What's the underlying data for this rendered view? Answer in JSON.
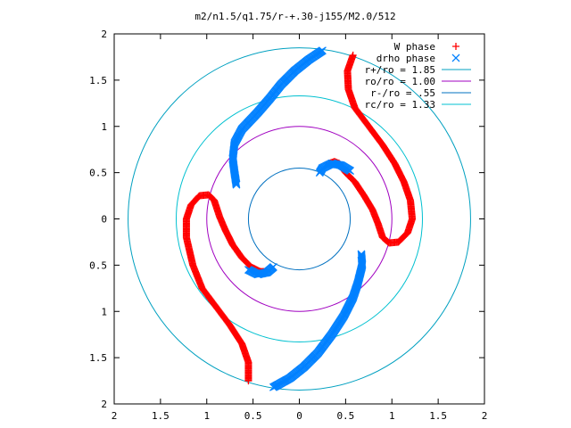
{
  "chart_data": {
    "type": "scatter",
    "title": "m2/n1.5/q1.75/r-+.30-j155/M2.0/512",
    "xlim": [
      -2,
      2
    ],
    "ylim": [
      -2,
      2
    ],
    "x_tick_values": [
      -2,
      -1.5,
      -1,
      -0.5,
      0,
      0.5,
      1,
      1.5,
      2
    ],
    "x_tick_labels": [
      "2",
      "1.5",
      "1",
      "0.5",
      "0",
      "0.5",
      "1",
      "1.5",
      "2"
    ],
    "y_tick_values": [
      2,
      1.5,
      1,
      0.5,
      0,
      -0.5,
      -1,
      -1.5,
      -2
    ],
    "y_tick_labels": [
      "2",
      "1.5",
      "1",
      "0.5",
      "0",
      "0.5",
      "1",
      "1.5",
      "2"
    ],
    "grid": false,
    "legend_position": "top-right",
    "series": [
      {
        "name": "W phase",
        "marker": "plus",
        "color": "#ff0000",
        "arms": [
          [
            [
              0.58,
              1.77
            ],
            [
              0.52,
              1.6
            ],
            [
              0.53,
              1.4
            ],
            [
              0.6,
              1.2
            ],
            [
              0.75,
              1.0
            ],
            [
              0.9,
              0.8
            ],
            [
              1.03,
              0.6
            ],
            [
              1.13,
              0.4
            ],
            [
              1.2,
              0.2
            ],
            [
              1.22,
              0.0
            ],
            [
              1.17,
              -0.15
            ],
            [
              1.07,
              -0.25
            ],
            [
              0.97,
              -0.26
            ],
            [
              0.9,
              -0.2
            ],
            [
              0.85,
              -0.05
            ],
            [
              0.79,
              0.1
            ],
            [
              0.7,
              0.25
            ],
            [
              0.6,
              0.4
            ],
            [
              0.5,
              0.5
            ],
            [
              0.43,
              0.6
            ],
            [
              0.38,
              0.62
            ],
            [
              0.32,
              0.6
            ]
          ],
          [
            [
              -0.55,
              -1.75
            ],
            [
              -0.55,
              -1.55
            ],
            [
              -0.62,
              -1.35
            ],
            [
              -0.75,
              -1.15
            ],
            [
              -0.9,
              -0.95
            ],
            [
              -1.05,
              -0.75
            ],
            [
              -1.15,
              -0.5
            ],
            [
              -1.22,
              -0.2
            ],
            [
              -1.22,
              0.0
            ],
            [
              -1.17,
              0.15
            ],
            [
              -1.08,
              0.25
            ],
            [
              -0.98,
              0.26
            ],
            [
              -0.92,
              0.2
            ],
            [
              -0.86,
              0.02
            ],
            [
              -0.8,
              -0.12
            ],
            [
              -0.72,
              -0.28
            ],
            [
              -0.62,
              -0.42
            ],
            [
              -0.52,
              -0.52
            ],
            [
              -0.42,
              -0.57
            ],
            [
              -0.35,
              -0.57
            ]
          ]
        ]
      },
      {
        "name": "drho phase",
        "marker": "cross",
        "color": "#0080ff",
        "arms": [
          [
            [
              0.25,
              1.82
            ],
            [
              0.1,
              1.72
            ],
            [
              -0.05,
              1.6
            ],
            [
              -0.2,
              1.45
            ],
            [
              -0.32,
              1.3
            ],
            [
              -0.45,
              1.15
            ],
            [
              -0.62,
              0.97
            ],
            [
              -0.7,
              0.82
            ],
            [
              -0.72,
              0.65
            ],
            [
              -0.7,
              0.5
            ],
            [
              -0.68,
              0.37
            ]
          ],
          [
            [
              -0.28,
              -1.82
            ],
            [
              -0.1,
              -1.72
            ],
            [
              0.05,
              -1.6
            ],
            [
              0.2,
              -1.45
            ],
            [
              0.35,
              -1.25
            ],
            [
              0.48,
              -1.05
            ],
            [
              0.58,
              -0.85
            ],
            [
              0.63,
              -0.7
            ],
            [
              0.68,
              -0.5
            ],
            [
              0.67,
              -0.38
            ]
          ],
          [
            [
              0.55,
              0.52
            ],
            [
              0.45,
              0.58
            ],
            [
              0.35,
              0.6
            ],
            [
              0.25,
              0.55
            ],
            [
              0.22,
              0.5
            ]
          ],
          [
            [
              -0.55,
              -0.55
            ],
            [
              -0.45,
              -0.6
            ],
            [
              -0.35,
              -0.58
            ],
            [
              -0.28,
              -0.52
            ]
          ]
        ]
      },
      {
        "name": "r+/ro = 1.85",
        "type": "circle",
        "radius": 1.85,
        "color": "#00a0c0"
      },
      {
        "name": "ro/ro = 1.00",
        "type": "circle",
        "radius": 1.0,
        "color": "#a000c0"
      },
      {
        "name": "r-/ro = .55",
        "type": "circle",
        "radius": 0.55,
        "color": "#0070c0"
      },
      {
        "name": "rc/ro = 1.33",
        "type": "circle",
        "radius": 1.33,
        "color": "#00c0d0"
      }
    ]
  }
}
